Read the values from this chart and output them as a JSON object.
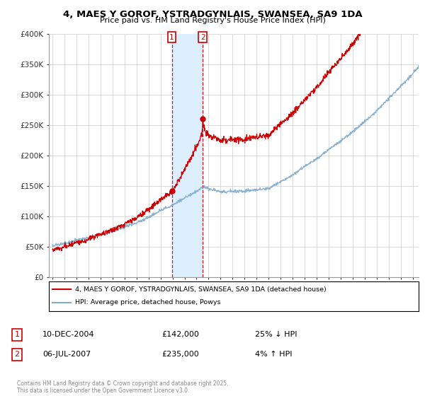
{
  "title": "4, MAES Y GOROF, YSTRADGYNLAIS, SWANSEA, SA9 1DA",
  "subtitle": "Price paid vs. HM Land Registry's House Price Index (HPI)",
  "ylabel_ticks": [
    "£0",
    "£50K",
    "£100K",
    "£150K",
    "£200K",
    "£250K",
    "£300K",
    "£350K",
    "£400K"
  ],
  "ytick_vals": [
    0,
    50000,
    100000,
    150000,
    200000,
    250000,
    300000,
    350000,
    400000
  ],
  "ylim": [
    0,
    400000
  ],
  "xlim_start": 1994.7,
  "xlim_end": 2025.5,
  "legend_line1": "4, MAES Y GOROF, YSTRADGYNLAIS, SWANSEA, SA9 1DA (detached house)",
  "legend_line2": "HPI: Average price, detached house, Powys",
  "line_color_red": "#cc0000",
  "line_color_blue": "#7eaacc",
  "marker1_x": 2004.94,
  "marker1_price": 142000,
  "marker2_x": 2007.51,
  "marker2_price": 235000,
  "shade_color": "#ddeeff",
  "copyright_text": "Contains HM Land Registry data © Crown copyright and database right 2025.\nThis data is licensed under the Open Government Licence v3.0.",
  "background_color": "#ffffff",
  "grid_color": "#cccccc",
  "xtick_start": 1995,
  "xtick_end": 2026
}
